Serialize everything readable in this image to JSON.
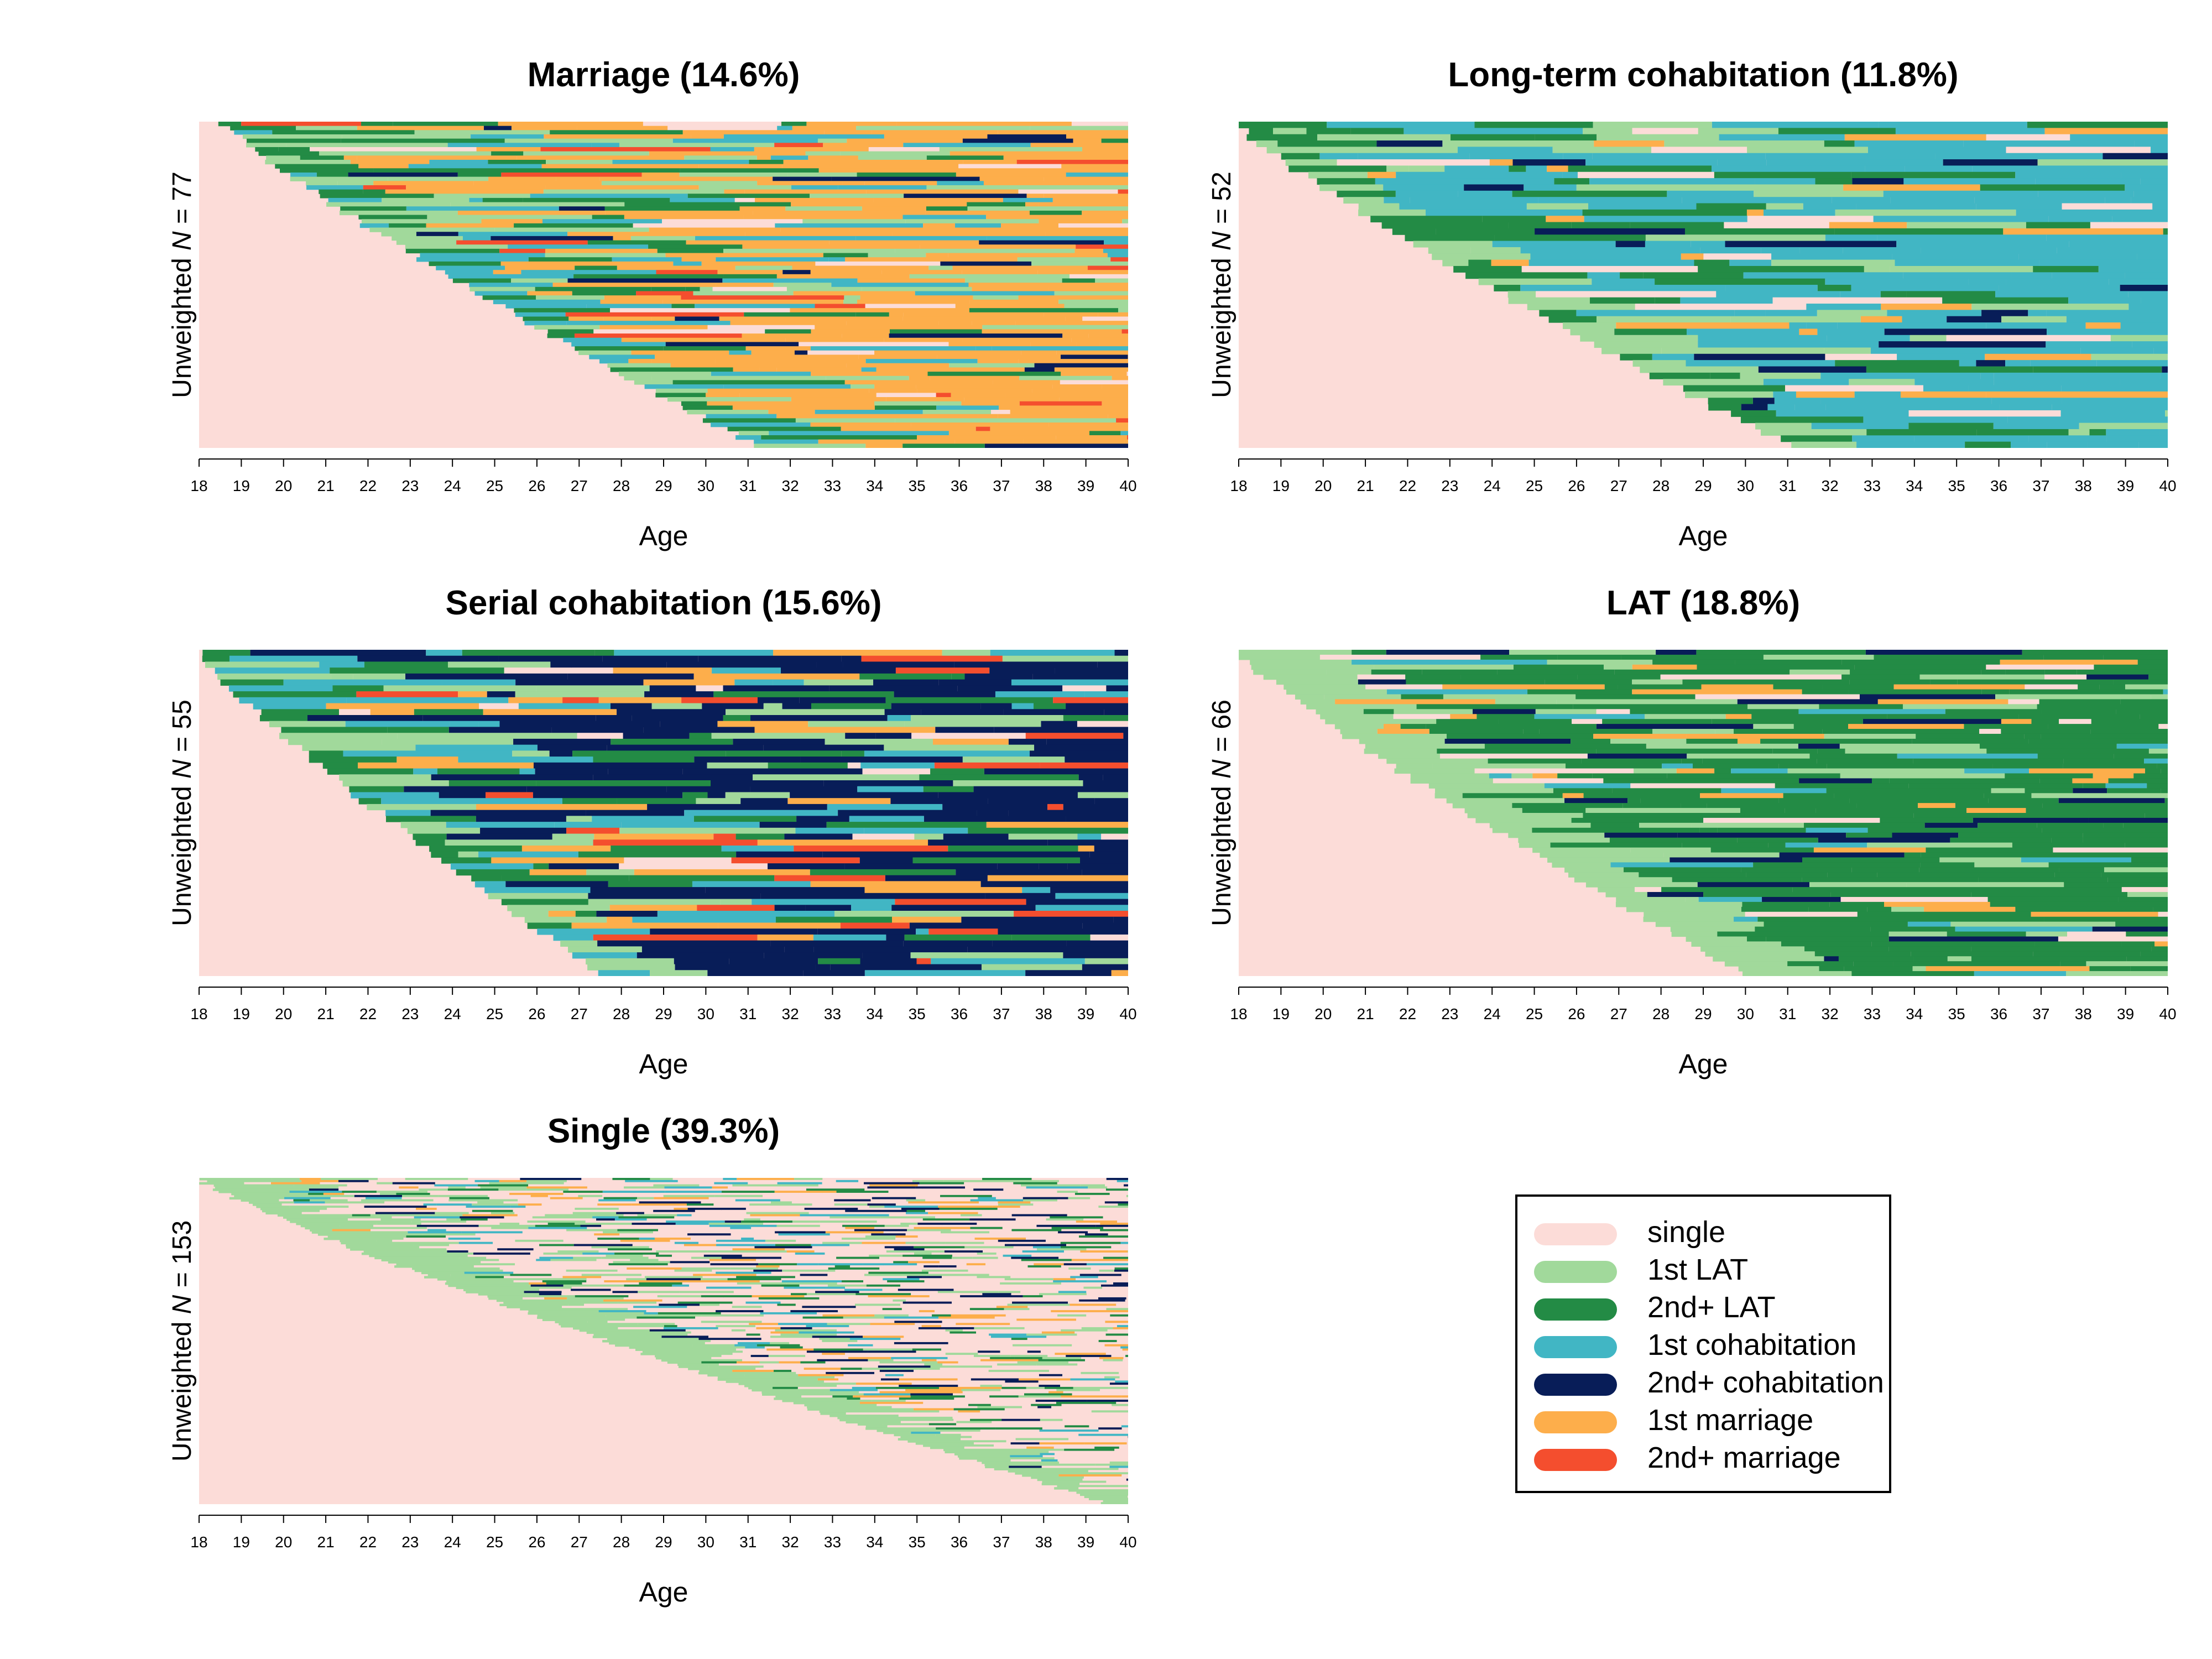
{
  "legend": {
    "items": [
      {
        "label": "single",
        "color": "#FCDCD8"
      },
      {
        "label": "1st LAT",
        "color": "#A1D99B"
      },
      {
        "label": "2nd+ LAT",
        "color": "#238B45"
      },
      {
        "label": "1st cohabitation",
        "color": "#41B6C4"
      },
      {
        "label": "2nd+ cohabitation",
        "color": "#081D58"
      },
      {
        "label": "1st marriage",
        "color": "#FDAE4B"
      },
      {
        "label": "2nd+ marriage",
        "color": "#F44E2E"
      }
    ]
  },
  "chart_data": [
    {
      "type": "heatmap",
      "title": "Marriage (14.6%)",
      "ylabel_prefix": "Unweighted",
      "ylabel_n": "N",
      "ylabel_suffix": "= 77",
      "xlabel": "Age",
      "x_ticks": [
        "18",
        "19",
        "20",
        "21",
        "22",
        "23",
        "24",
        "25",
        "26",
        "27",
        "28",
        "29",
        "30",
        "31",
        "32",
        "33",
        "34",
        "35",
        "36",
        "37",
        "38",
        "39",
        "40"
      ],
      "rows": 77,
      "onset_age_range": [
        18.6,
        31.2
      ],
      "state_mix": {
        "after_onset": [
          "1st LAT",
          "2nd+ LAT",
          "1st cohabitation"
        ],
        "dominant_late": "1st marriage",
        "minor": [
          "2nd+ cohabitation",
          "2nd+ marriage",
          "single"
        ]
      }
    },
    {
      "type": "heatmap",
      "title": "Long-term cohabitation (11.8%)",
      "ylabel_prefix": "Unweighted",
      "ylabel_n": "N",
      "ylabel_suffix": "= 52",
      "xlabel": "Age",
      "x_ticks": [
        "18",
        "19",
        "20",
        "21",
        "22",
        "23",
        "24",
        "25",
        "26",
        "27",
        "28",
        "29",
        "30",
        "31",
        "32",
        "33",
        "34",
        "35",
        "36",
        "37",
        "38",
        "39",
        "40"
      ],
      "rows": 52,
      "onset_age_range": [
        18.0,
        31.0
      ],
      "state_mix": {
        "after_onset": [
          "1st LAT",
          "2nd+ LAT"
        ],
        "dominant_late": "1st cohabitation",
        "minor": [
          "1st marriage",
          "2nd+ cohabitation",
          "single"
        ]
      }
    },
    {
      "type": "heatmap",
      "title": "Serial cohabitation (15.6%)",
      "ylabel_prefix": "Unweighted",
      "ylabel_n": "N",
      "ylabel_suffix": "= 55",
      "xlabel": "Age",
      "x_ticks": [
        "18",
        "19",
        "20",
        "21",
        "22",
        "23",
        "24",
        "25",
        "26",
        "27",
        "28",
        "29",
        "30",
        "31",
        "32",
        "33",
        "34",
        "35",
        "36",
        "37",
        "38",
        "39",
        "40"
      ],
      "rows": 55,
      "onset_age_range": [
        18.0,
        27.5
      ],
      "state_mix": {
        "after_onset": [
          "1st LAT",
          "2nd+ LAT",
          "1st cohabitation"
        ],
        "dominant_late": "2nd+ cohabitation",
        "minor": [
          "1st marriage",
          "single",
          "2nd+ marriage"
        ]
      }
    },
    {
      "type": "heatmap",
      "title": "LAT (18.8%)",
      "ylabel_prefix": "Unweighted",
      "ylabel_n": "N",
      "ylabel_suffix": "= 66",
      "xlabel": "Age",
      "x_ticks": [
        "18",
        "19",
        "20",
        "21",
        "22",
        "23",
        "24",
        "25",
        "26",
        "27",
        "28",
        "29",
        "30",
        "31",
        "32",
        "33",
        "34",
        "35",
        "36",
        "37",
        "38",
        "39",
        "40"
      ],
      "rows": 66,
      "onset_age_range": [
        18.0,
        30.0
      ],
      "state_mix": {
        "after_onset": [
          "1st LAT"
        ],
        "dominant_late": "2nd+ LAT",
        "minor": [
          "single",
          "1st cohabitation",
          "2nd+ cohabitation",
          "1st marriage"
        ]
      }
    },
    {
      "type": "heatmap",
      "title": "Single (39.3%)",
      "ylabel_prefix": "Unweighted",
      "ylabel_n": "N",
      "ylabel_suffix": "= 153",
      "xlabel": "Age",
      "x_ticks": [
        "18",
        "19",
        "20",
        "21",
        "22",
        "23",
        "24",
        "25",
        "26",
        "27",
        "28",
        "29",
        "30",
        "31",
        "32",
        "33",
        "34",
        "35",
        "36",
        "37",
        "38",
        "39",
        "40"
      ],
      "rows": 153,
      "onset_age_range": [
        18.0,
        39.5
      ],
      "state_mix": {
        "after_onset": [
          "1st LAT"
        ],
        "dominant_late": "single",
        "minor": [
          "2nd+ LAT",
          "1st cohabitation",
          "2nd+ cohabitation",
          "1st marriage"
        ]
      }
    }
  ]
}
